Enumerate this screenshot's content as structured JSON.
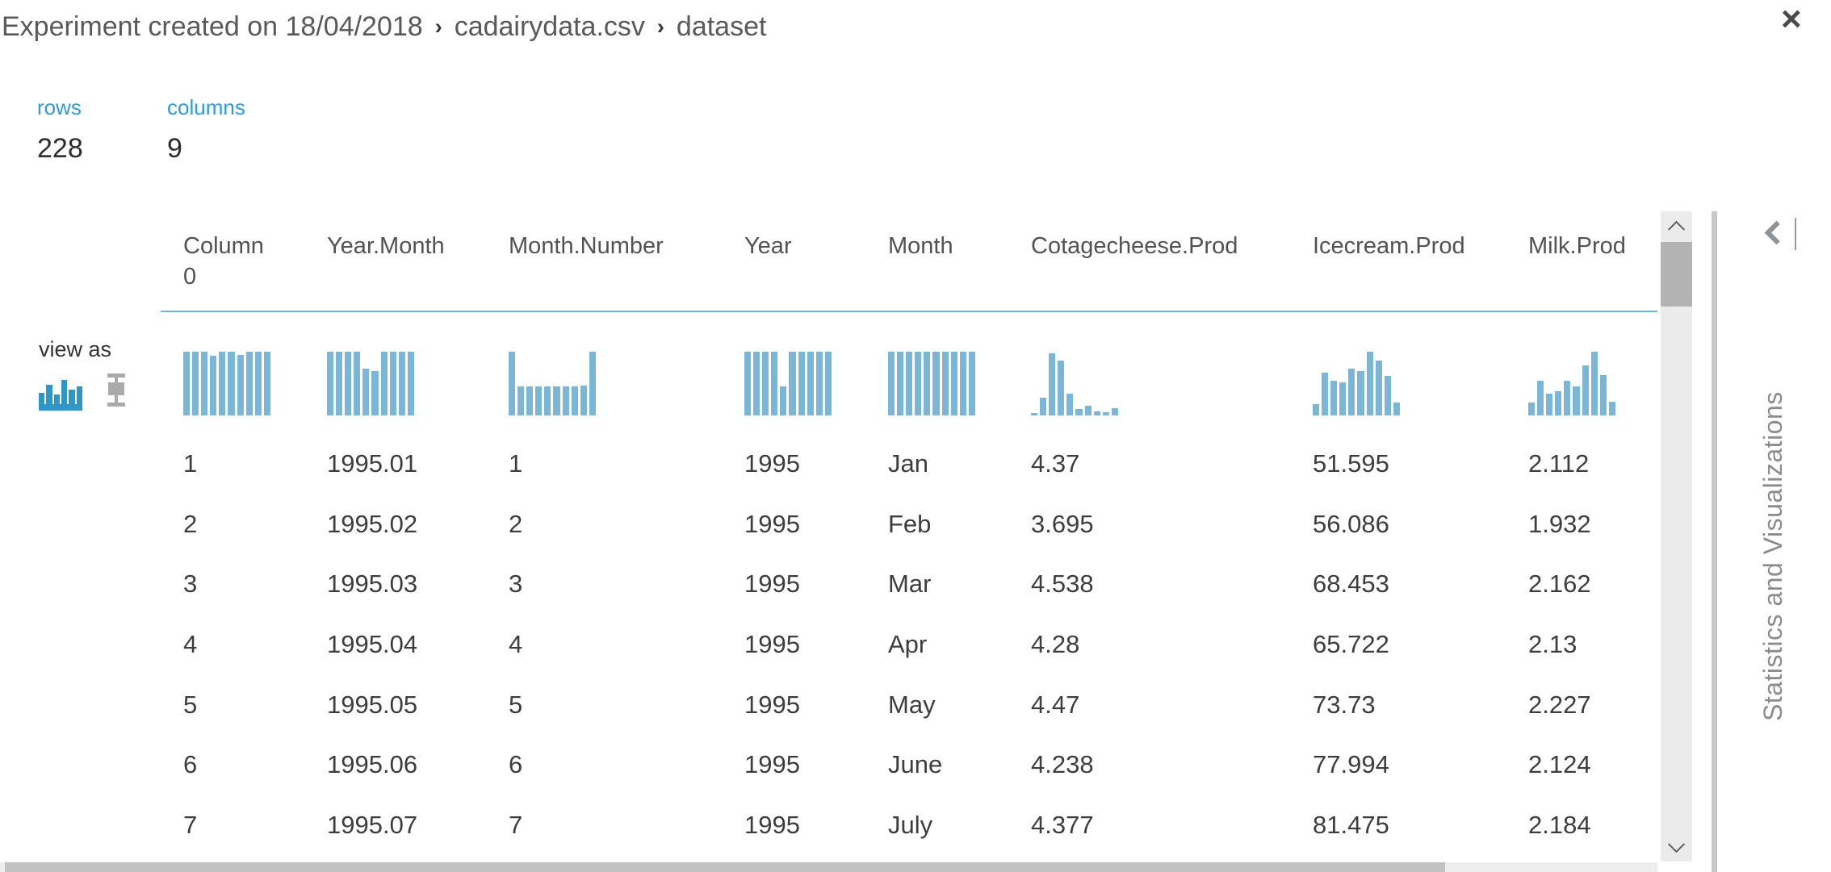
{
  "breadcrumb": {
    "items": [
      "Experiment created on 18/04/2018",
      "cadairydata.csv",
      "dataset"
    ],
    "separator": "›"
  },
  "summary": {
    "rows_label": "rows",
    "rows_value": "228",
    "columns_label": "columns",
    "columns_value": "9"
  },
  "view_as": {
    "label": "view as"
  },
  "icons": {
    "close": "×",
    "breadcrumb_separator": "chevron-right",
    "collapse_chevron": "chevron-left",
    "scroll_up": "chevron-up",
    "scroll_down": "chevron-down",
    "view_histogram": "histogram-icon",
    "view_boxplot": "boxplot-icon"
  },
  "colors": {
    "accent_blue": "#2f9bd8",
    "histogram_bar": "#7cb6d7",
    "header_underline": "#6db6da"
  },
  "table": {
    "columns": [
      {
        "label": "Column 0",
        "histogram": [
          1,
          1,
          1,
          0.94,
          1,
          1,
          0.95,
          1,
          1,
          1
        ]
      },
      {
        "label": "Year.Month",
        "histogram": [
          1,
          1,
          1,
          1,
          0.73,
          0.7,
          1,
          1,
          1,
          1
        ]
      },
      {
        "label": "Month.Number",
        "histogram": [
          1,
          0.45,
          0.45,
          0.45,
          0.45,
          0.45,
          0.45,
          0.45,
          0.47,
          1
        ]
      },
      {
        "label": "Year",
        "histogram": [
          1,
          1,
          1,
          1,
          0.45,
          1,
          1,
          1,
          1,
          1
        ]
      },
      {
        "label": "Month",
        "histogram": [
          1,
          1,
          1,
          1,
          1,
          1,
          1,
          1,
          1,
          1
        ]
      },
      {
        "label": "Cotagecheese.Prod",
        "histogram": [
          0.04,
          0.28,
          0.97,
          0.86,
          0.34,
          0.1,
          0.15,
          0.06,
          0.05,
          0.11
        ]
      },
      {
        "label": "Icecream.Prod",
        "histogram": [
          0.18,
          0.67,
          0.55,
          0.52,
          0.73,
          0.7,
          1,
          0.86,
          0.62,
          0.2
        ]
      },
      {
        "label": "Milk.Prod",
        "histogram": [
          0.2,
          0.55,
          0.34,
          0.38,
          0.55,
          0.45,
          0.78,
          1,
          0.63,
          0.21
        ]
      }
    ],
    "rows": [
      [
        "1",
        "1995.01",
        "1",
        "1995",
        "Jan",
        "4.37",
        "51.595",
        "2.112"
      ],
      [
        "2",
        "1995.02",
        "2",
        "1995",
        "Feb",
        "3.695",
        "56.086",
        "1.932"
      ],
      [
        "3",
        "1995.03",
        "3",
        "1995",
        "Mar",
        "4.538",
        "68.453",
        "2.162"
      ],
      [
        "4",
        "1995.04",
        "4",
        "1995",
        "Apr",
        "4.28",
        "65.722",
        "2.13"
      ],
      [
        "5",
        "1995.05",
        "5",
        "1995",
        "May",
        "4.47",
        "73.73",
        "2.227"
      ],
      [
        "6",
        "1995.06",
        "6",
        "1995",
        "June",
        "4.238",
        "77.994",
        "2.124"
      ],
      [
        "7",
        "1995.07",
        "7",
        "1995",
        "July",
        "4.377",
        "81.475",
        "2.184"
      ]
    ]
  },
  "right_panel": {
    "title": "Statistics and Visualizations"
  }
}
